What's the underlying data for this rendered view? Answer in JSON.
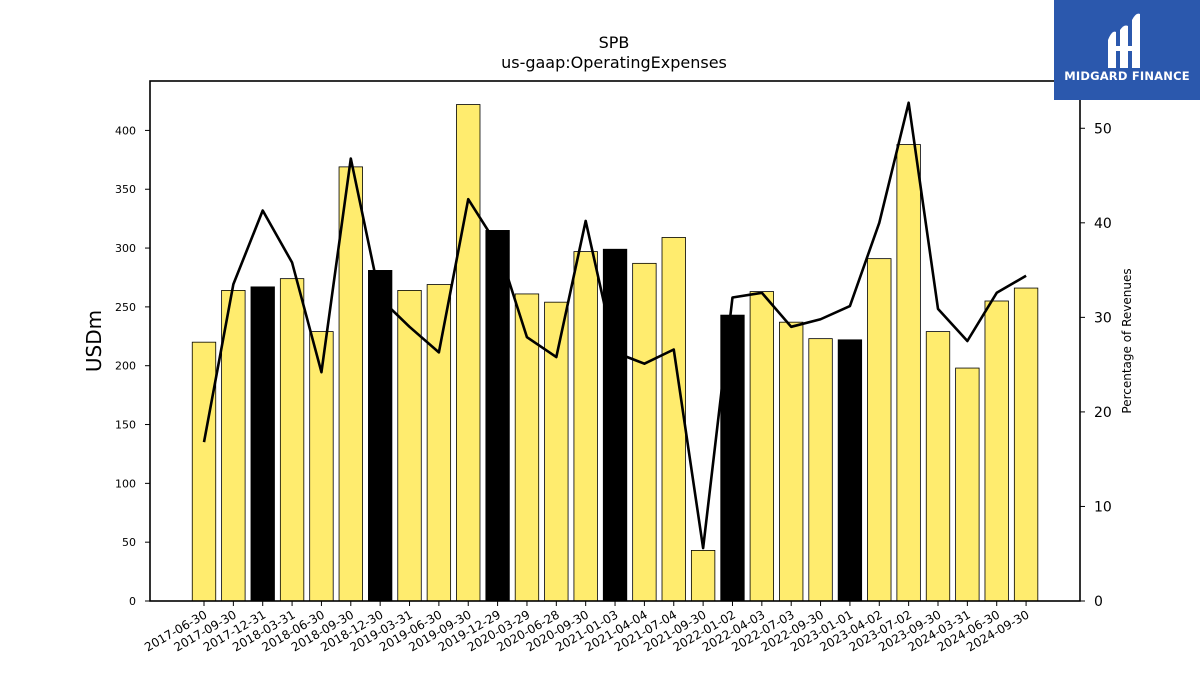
{
  "chart_data": {
    "type": "bar",
    "title": "SPB",
    "subtitle": "us-gaap:OperatingExpenses",
    "ylabel": "USDm",
    "y2label": "Percentage of Revenues",
    "ylim": [
      0,
      442
    ],
    "y2lim": [
      0,
      55
    ],
    "yticks": [
      0,
      50,
      100,
      150,
      200,
      250,
      300,
      350,
      400
    ],
    "y2ticks": [
      0,
      10,
      20,
      30,
      40,
      50
    ],
    "categories": [
      "2017-06-30",
      "2017-09-30",
      "2017-12-31",
      "2018-03-31",
      "2018-06-30",
      "2018-09-30",
      "2018-12-30",
      "2019-03-31",
      "2019-06-30",
      "2019-09-30",
      "2019-12-29",
      "2020-03-29",
      "2020-06-28",
      "2020-09-30",
      "2021-01-03",
      "2021-04-04",
      "2021-07-04",
      "2021-09-30",
      "2022-01-02",
      "2022-04-03",
      "2022-07-03",
      "2022-09-30",
      "2023-01-01",
      "2023-04-02",
      "2023-07-02",
      "2023-09-30",
      "2024-03-31",
      "2024-06-30",
      "2024-09-30"
    ],
    "values": [
      220,
      264,
      267,
      274,
      229,
      369,
      281,
      264,
      269,
      422,
      315,
      261,
      254,
      297,
      299,
      287,
      309,
      43,
      243,
      263,
      237,
      223,
      222,
      291,
      388,
      229,
      198,
      255,
      266
    ],
    "highlight": [
      false,
      false,
      true,
      false,
      false,
      false,
      true,
      false,
      false,
      false,
      true,
      false,
      false,
      false,
      true,
      false,
      false,
      false,
      true,
      false,
      false,
      false,
      true,
      false,
      false,
      false,
      false,
      false,
      false
    ],
    "line_series": {
      "name": "Percentage of Revenues",
      "values": [
        16.8,
        33.5,
        41.3,
        35.8,
        24.2,
        46.8,
        32.0,
        29.0,
        26.3,
        42.5,
        37.6,
        27.9,
        25.8,
        40.2,
        26.3,
        25.1,
        26.6,
        5.6,
        32.1,
        32.6,
        29.0,
        29.8,
        31.2,
        40.0,
        52.7,
        30.9,
        27.5,
        32.6,
        34.4
      ]
    },
    "colors": {
      "bar": "#ffec6e",
      "bar_highlight": "#000000",
      "line": "#000000"
    }
  },
  "brand": {
    "name": "MIDGARD FINANCE",
    "color": "#2b58ad"
  }
}
